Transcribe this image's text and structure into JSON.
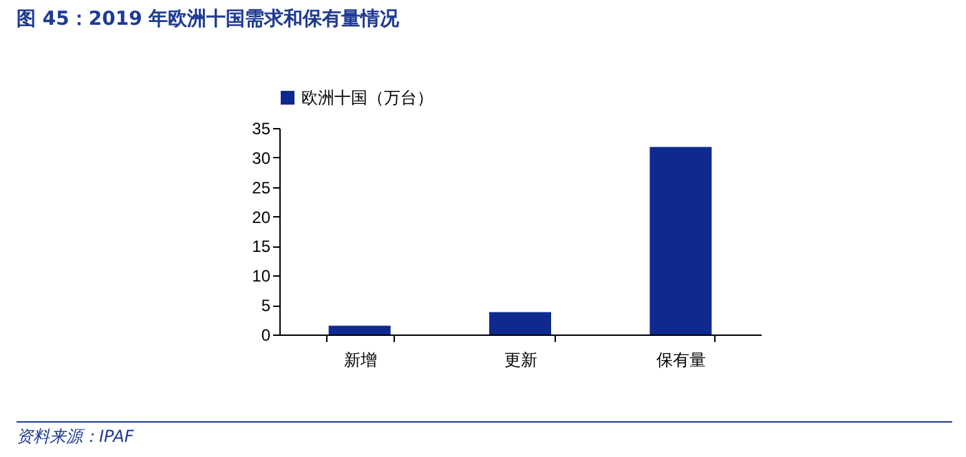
{
  "chart_data": {
    "type": "bar",
    "title": "图 45：2019 年欧洲十国需求和保有量情况",
    "categories": [
      "新增",
      "更新",
      "保有量"
    ],
    "series": [
      {
        "name": "欧洲十国（万台）",
        "color": "#0e2a8e",
        "values": [
          1.5,
          3.8,
          31.8
        ]
      }
    ],
    "ylim": [
      0,
      35
    ],
    "yticks": [
      0,
      5,
      10,
      15,
      20,
      25,
      30,
      35
    ],
    "grid": false,
    "legend": "top",
    "annotations": [
      "资料来源：IPAF"
    ]
  }
}
